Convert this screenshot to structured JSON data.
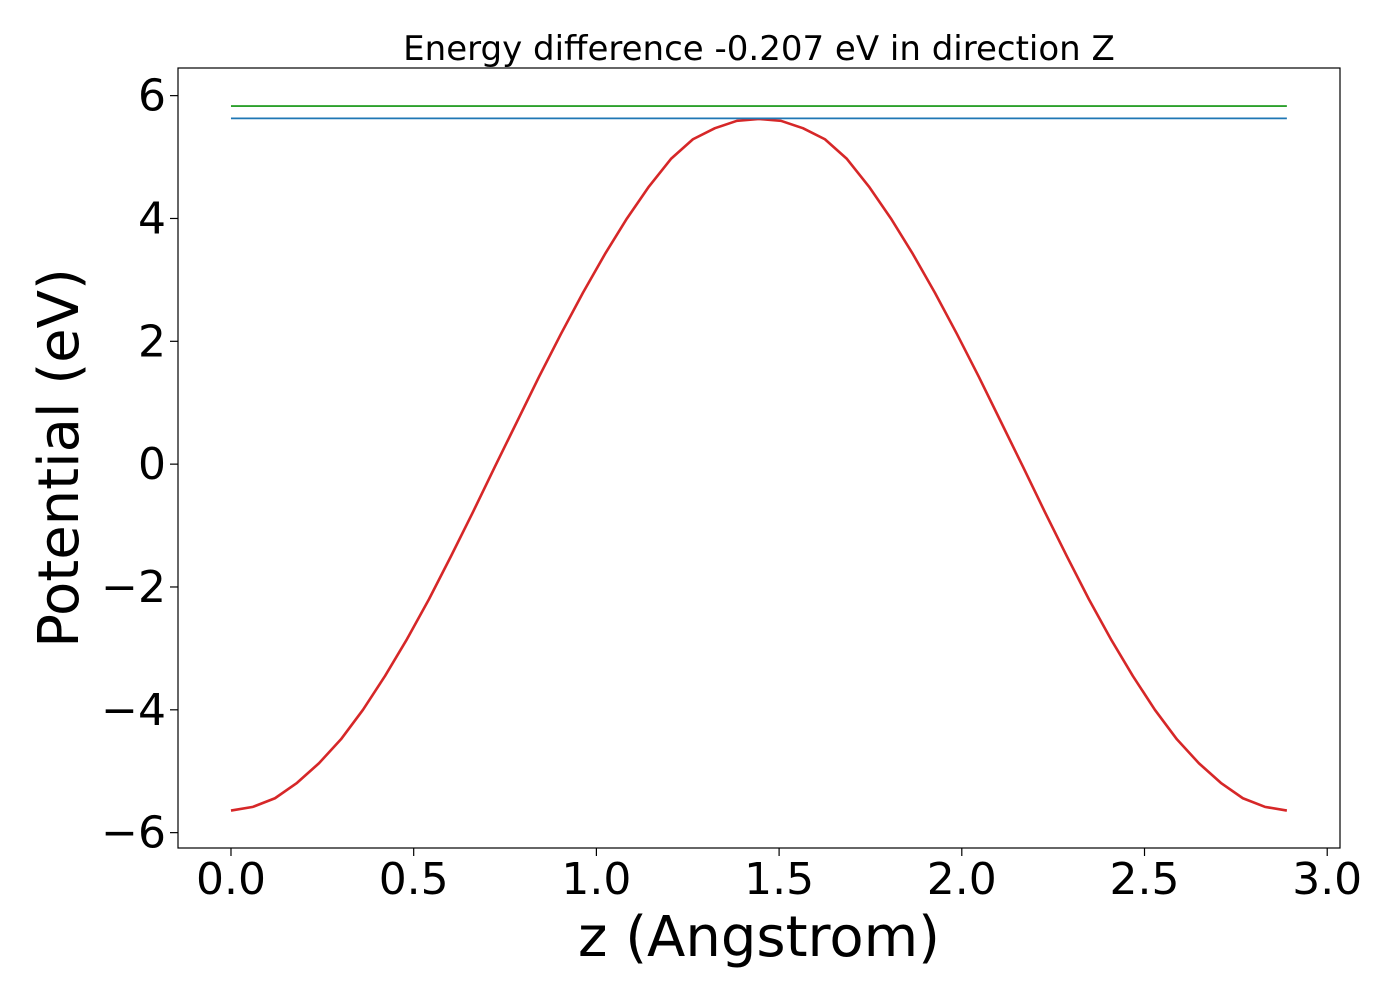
{
  "chart_data": {
    "type": "line",
    "title": "Energy difference -0.207 eV in direction Z",
    "xlabel": "z (Angstrom)",
    "ylabel": "Potential (eV)",
    "xlim": [
      -0.145,
      3.035
    ],
    "ylim": [
      -6.25,
      6.45
    ],
    "xticks": [
      0.0,
      0.5,
      1.0,
      1.5,
      2.0,
      2.5,
      3.0
    ],
    "xtick_labels": [
      "0.0",
      "0.5",
      "1.0",
      "1.5",
      "2.0",
      "2.5",
      "3.0"
    ],
    "yticks": [
      -6,
      -4,
      -2,
      0,
      2,
      4,
      6
    ],
    "ytick_labels": [
      "−6",
      "−4",
      "−2",
      "0",
      "2",
      "4",
      "6"
    ],
    "grid": false,
    "legend": "none",
    "series": [
      {
        "color": "#d62728",
        "x": [
          0.0,
          0.0602,
          0.1204,
          0.1806,
          0.2408,
          0.301,
          0.3612,
          0.4214,
          0.4816,
          0.5418,
          0.602,
          0.6622,
          0.7224,
          0.7826,
          0.8428,
          0.903,
          0.9632,
          1.0234,
          1.0836,
          1.1438,
          1.204,
          1.2642,
          1.3244,
          1.3846,
          1.4448,
          1.505,
          1.5652,
          1.6254,
          1.6856,
          1.7458,
          1.806,
          1.8662,
          1.9264,
          1.9866,
          2.0468,
          2.107,
          2.1672,
          2.2274,
          2.2876,
          2.3478,
          2.408,
          2.4682,
          2.5284,
          2.5886,
          2.6488,
          2.709,
          2.7692,
          2.8294,
          2.8896
        ],
        "y": [
          -5.64,
          -5.58,
          -5.44,
          -5.19,
          -4.87,
          -4.48,
          -4.0,
          -3.45,
          -2.85,
          -2.2,
          -1.5,
          -0.78,
          -0.04,
          0.69,
          1.42,
          2.12,
          2.79,
          3.42,
          4.0,
          4.52,
          4.97,
          5.29,
          5.47,
          5.59,
          5.62,
          5.59,
          5.47,
          5.29,
          4.97,
          4.52,
          4.0,
          3.42,
          2.79,
          2.12,
          1.42,
          0.69,
          -0.04,
          -0.78,
          -1.5,
          -2.2,
          -2.85,
          -3.45,
          -4.0,
          -4.48,
          -4.87,
          -5.19,
          -5.44,
          -5.58,
          -5.64
        ]
      },
      {
        "color": "#2ca02c",
        "x": [
          0.0,
          2.8896
        ],
        "y": [
          5.83,
          5.83
        ]
      },
      {
        "color": "#1f77b4",
        "x": [
          0.0,
          2.8896
        ],
        "y": [
          5.63,
          5.63
        ]
      }
    ]
  }
}
